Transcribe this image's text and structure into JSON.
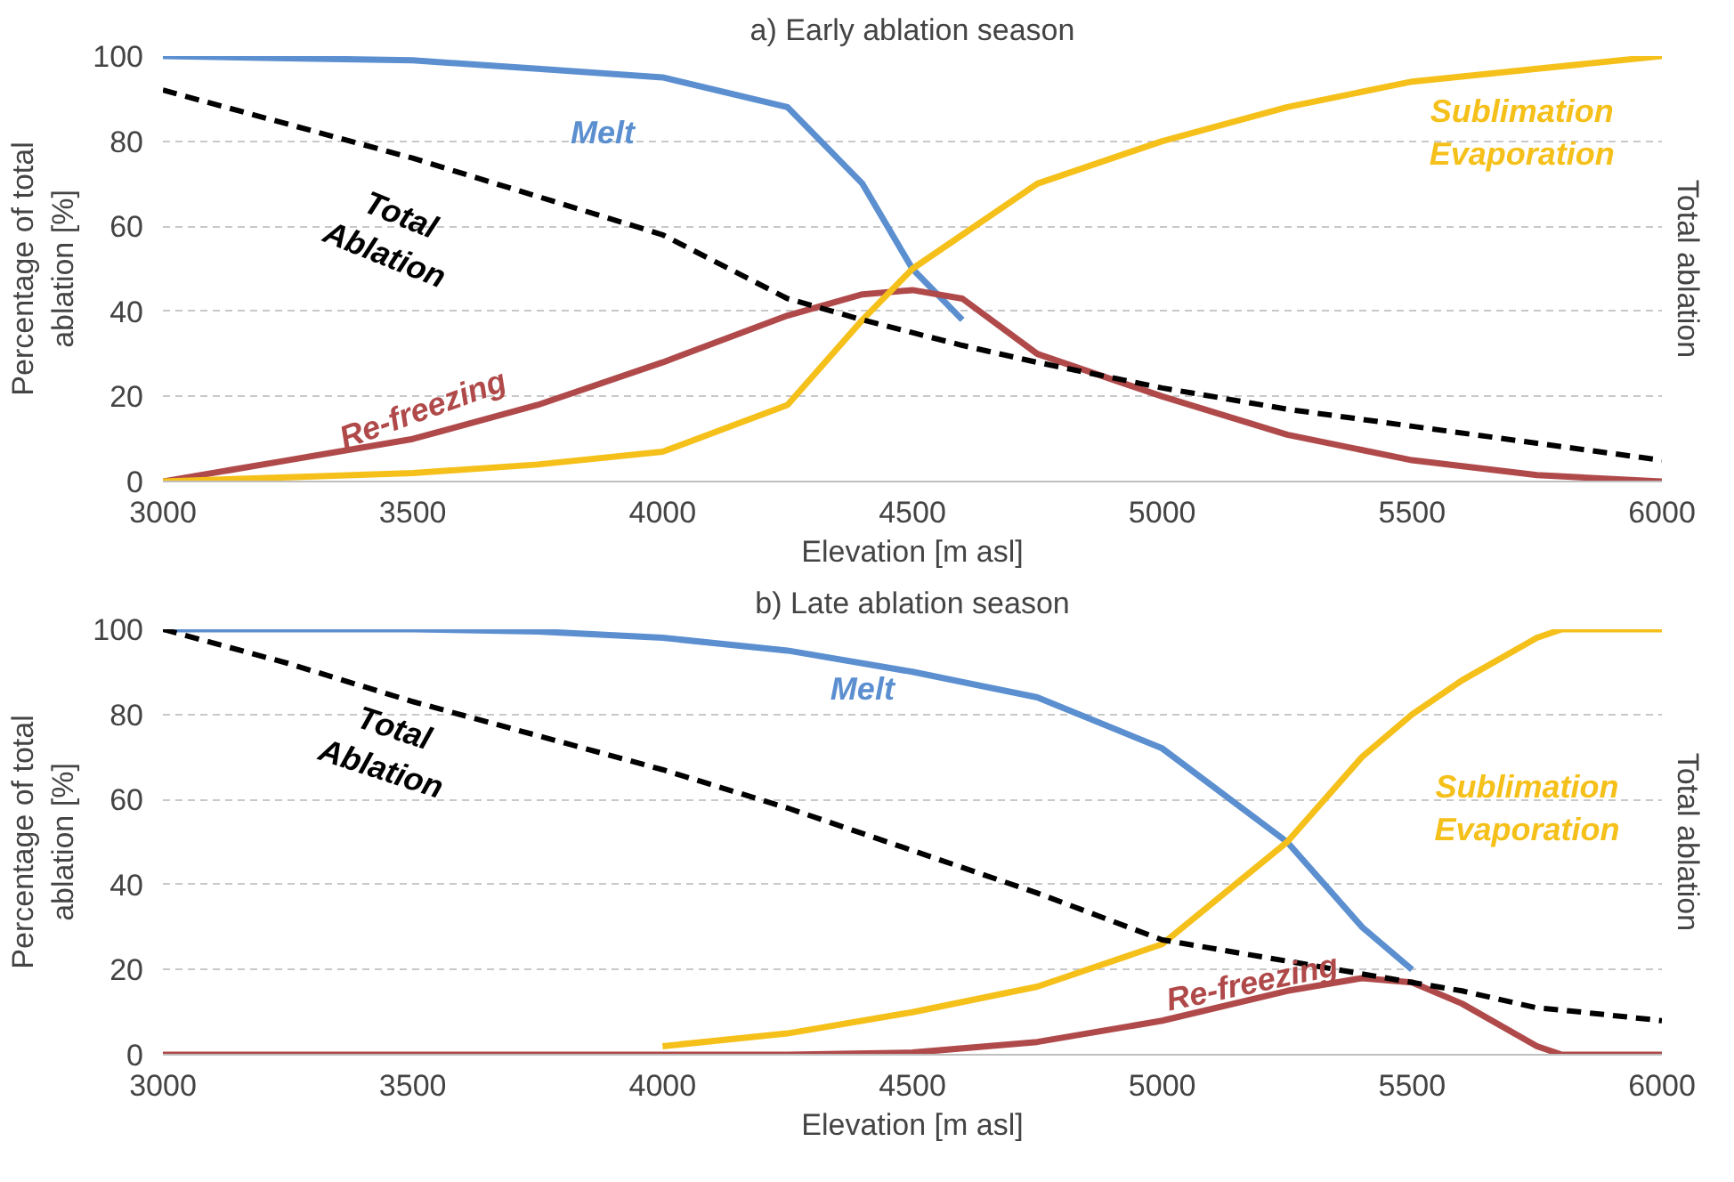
{
  "chart_data": [
    {
      "type": "line",
      "title": "a) Early ablation season",
      "xlabel": "Elevation [m asl]",
      "ylabel": "Percentage of total\nablation [%]",
      "y2label": "Total ablation",
      "xlim": [
        3000,
        6000
      ],
      "xticks": [
        3000,
        3500,
        4000,
        4500,
        5000,
        5500,
        6000
      ],
      "ylim": [
        0,
        100
      ],
      "yticks": [
        0,
        20,
        40,
        60,
        80,
        100
      ],
      "grid": "y",
      "marker": "none",
      "series": [
        {
          "name": "Melt",
          "color": "#5b8fd0",
          "x": [
            3000,
            3250,
            3500,
            3750,
            4000,
            4250,
            4400,
            4500,
            4600
          ],
          "values": [
            100,
            99.5,
            99,
            97,
            95,
            88,
            70,
            50,
            38
          ]
        },
        {
          "name": "Re-freezing",
          "color": "#b04a4a",
          "x": [
            3000,
            3250,
            3500,
            3750,
            4000,
            4250,
            4400,
            4500,
            4600,
            4750,
            5000,
            5250,
            5500,
            5750,
            6000
          ],
          "values": [
            0,
            5,
            10,
            18,
            28,
            39,
            44,
            45,
            43,
            30,
            20,
            11,
            5,
            1.5,
            0
          ]
        },
        {
          "name": "Sublimation\nEvaporation",
          "color": "#f5c01a",
          "x": [
            3000,
            3250,
            3500,
            3750,
            4000,
            4250,
            4400,
            4500,
            4600,
            4750,
            5000,
            5250,
            5500,
            5750,
            6000
          ],
          "values": [
            0,
            1,
            2,
            4,
            7,
            18,
            38,
            50,
            58,
            70,
            80,
            88,
            94,
            97,
            100
          ]
        },
        {
          "name": "Total\nAblation",
          "color": "#000000",
          "line_style": "dashed",
          "x": [
            3000,
            3250,
            3500,
            3750,
            4000,
            4250,
            4400,
            4500,
            4600,
            4750,
            5000,
            5250,
            5500,
            5750,
            6000
          ],
          "values": [
            92,
            84,
            76,
            67,
            58,
            43,
            38,
            35,
            32,
            28,
            22,
            17,
            13,
            9,
            5
          ]
        }
      ]
    },
    {
      "type": "line",
      "title": "b) Late ablation season",
      "xlabel": "Elevation [m asl]",
      "ylabel": "Percentage of total\nablation [%]",
      "y2label": "Total ablation",
      "xlim": [
        3000,
        6000
      ],
      "xticks": [
        3000,
        3500,
        4000,
        4500,
        5000,
        5500,
        6000
      ],
      "ylim": [
        0,
        100
      ],
      "yticks": [
        0,
        20,
        40,
        60,
        80,
        100
      ],
      "grid": "y",
      "marker": "none",
      "series": [
        {
          "name": "Melt",
          "color": "#5b8fd0",
          "x": [
            3000,
            3250,
            3500,
            3750,
            4000,
            4250,
            4500,
            4750,
            5000,
            5250,
            5400,
            5500
          ],
          "values": [
            100,
            100,
            100,
            99.5,
            98,
            95,
            90,
            84,
            72,
            50,
            30,
            20
          ]
        },
        {
          "name": "Re-freezing",
          "color": "#b04a4a",
          "x": [
            3000,
            3250,
            3500,
            3750,
            4000,
            4250,
            4500,
            4750,
            5000,
            5250,
            5400,
            5500,
            5600,
            5750,
            5800,
            6000
          ],
          "values": [
            0,
            0,
            0,
            0,
            0,
            0,
            0.5,
            3,
            8,
            15,
            18,
            17,
            12,
            2,
            0,
            0
          ]
        },
        {
          "name": "Sublimation\nEvaporation",
          "color": "#f5c01a",
          "x": [
            4000,
            4250,
            4500,
            4750,
            5000,
            5250,
            5400,
            5500,
            5600,
            5750,
            5800,
            6000
          ],
          "values": [
            2,
            5,
            10,
            16,
            26,
            50,
            70,
            80,
            88,
            98,
            100,
            100
          ]
        },
        {
          "name": "Total\nAblation",
          "color": "#000000",
          "line_style": "dashed",
          "x": [
            3000,
            3250,
            3500,
            3750,
            4000,
            4250,
            4500,
            4750,
            5000,
            5250,
            5400,
            5500,
            5600,
            5750,
            5800,
            6000
          ],
          "values": [
            100,
            92,
            83,
            75,
            67,
            58,
            48,
            38,
            27,
            22,
            19,
            17,
            15,
            11,
            10.5,
            8
          ]
        }
      ]
    }
  ]
}
